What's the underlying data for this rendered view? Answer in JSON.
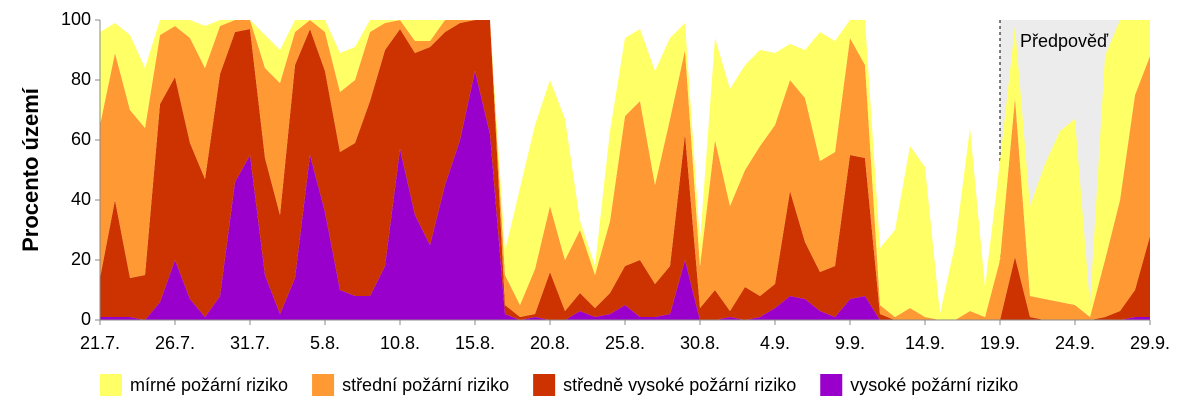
{
  "chart_data": {
    "type": "stacked_area",
    "y_label": "Procento území",
    "categories": [
      "21.7.",
      null,
      null,
      null,
      null,
      "26.7.",
      null,
      null,
      null,
      null,
      "31.7.",
      null,
      null,
      null,
      null,
      "5.8.",
      null,
      null,
      null,
      null,
      "10.8.",
      null,
      null,
      null,
      null,
      "15.8.",
      null,
      null,
      null,
      null,
      "20.8.",
      null,
      null,
      null,
      null,
      "25.8.",
      null,
      null,
      null,
      null,
      "30.8.",
      null,
      null,
      null,
      null,
      "4.9.",
      null,
      null,
      null,
      null,
      "9.9.",
      null,
      null,
      null,
      null,
      "14.9.",
      null,
      null,
      null,
      null,
      "19.9.",
      null,
      null,
      null,
      null,
      "24.9.",
      null,
      null,
      null,
      null,
      "29.9."
    ],
    "series": [
      {
        "name": "mírné požární riziko",
        "color": "#ffff66",
        "values": [
          31,
          10,
          25,
          20,
          5,
          2,
          6,
          14,
          2,
          0,
          0,
          11,
          11,
          4,
          0,
          4,
          13,
          11,
          4,
          1,
          0,
          7,
          7,
          0,
          0,
          0,
          0,
          8,
          39,
          48,
          42,
          47,
          3,
          3,
          30,
          26,
          24,
          38,
          27,
          9,
          8,
          34,
          39,
          35,
          32,
          24,
          12,
          16,
          43,
          37,
          6,
          15,
          19,
          29,
          54,
          50,
          2,
          25,
          61,
          10,
          33,
          24,
          30,
          45,
          57,
          62,
          4,
          68,
          60,
          25,
          12
        ]
      },
      {
        "name": "střední požární riziko",
        "color": "#ff9933",
        "values": [
          51,
          49,
          56,
          49,
          23,
          17,
          35,
          37,
          16,
          4,
          3,
          30,
          44,
          11,
          3,
          13,
          20,
          21,
          23,
          9,
          3,
          4,
          2,
          4,
          1,
          0,
          0,
          10,
          4,
          15,
          22,
          17,
          21,
          11,
          24,
          50,
          53,
          33,
          49,
          28,
          14,
          50,
          35,
          39,
          50,
          53,
          37,
          48,
          37,
          38,
          39,
          31,
          3,
          1,
          4,
          1,
          0,
          0,
          3,
          1,
          20,
          53,
          7,
          7,
          6,
          5,
          1,
          19,
          37,
          65,
          60
        ]
      },
      {
        "name": "středně vysoké požární riziko",
        "color": "#cc3300",
        "values": [
          13,
          39,
          13,
          15,
          66,
          61,
          52,
          46,
          74,
          50,
          42,
          39,
          33,
          71,
          42,
          47,
          46,
          51,
          65,
          72,
          40,
          54,
          66,
          51,
          39,
          17,
          38,
          3,
          1,
          1,
          16,
          3,
          6,
          3,
          7,
          13,
          19,
          11,
          16,
          42,
          4,
          10,
          2,
          11,
          7,
          8,
          35,
          19,
          13,
          17,
          48,
          46,
          2,
          0,
          0,
          0,
          0,
          0,
          0,
          0,
          0,
          21,
          1,
          0,
          0,
          0,
          0,
          1,
          3,
          9,
          27
        ]
      },
      {
        "name": "vysoké požární riziko",
        "color": "#9900cc",
        "values": [
          1,
          1,
          1,
          0,
          6,
          20,
          7,
          1,
          8,
          46,
          55,
          15,
          2,
          14,
          55,
          36,
          10,
          8,
          8,
          18,
          57,
          35,
          25,
          45,
          60,
          83,
          62,
          2,
          0,
          1,
          0,
          0,
          3,
          1,
          2,
          5,
          1,
          1,
          2,
          20,
          0,
          0,
          1,
          0,
          1,
          4,
          8,
          7,
          3,
          1,
          7,
          8,
          0,
          0,
          0,
          0,
          0,
          0,
          0,
          0,
          0,
          0,
          0,
          0,
          0,
          0,
          0,
          0,
          0,
          1,
          1
        ]
      }
    ],
    "ylim": [
      0,
      100
    ],
    "yticks": [
      0,
      20,
      40,
      60,
      80,
      100
    ],
    "forecast": {
      "label": "Předpověď",
      "from": "19.9.",
      "color": "#ececec"
    },
    "legend": "bottom"
  }
}
